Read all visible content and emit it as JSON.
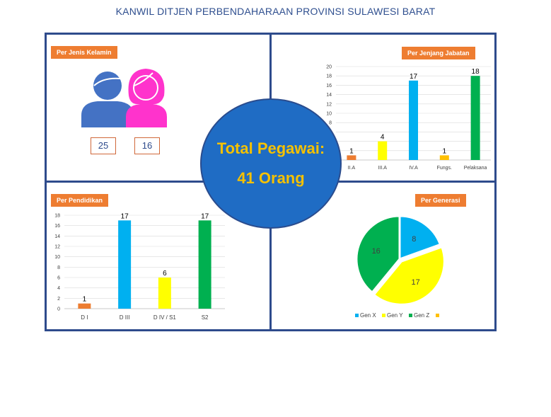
{
  "title": "KANWIL DITJEN PERBENDAHARAAN PROVINSI SULAWESI BARAT",
  "gender_panel": {
    "label": "Per Jenis Kelamin",
    "male_count": "25",
    "female_count": "16",
    "male_color": "#4472c4",
    "female_color": "#ff33cc"
  },
  "total": {
    "line1": "Total Pegawai:",
    "line2": "41 Orang",
    "circle_color": "#1f6cc4",
    "text_color": "#f5c100"
  },
  "rank_panel": {
    "label": "Per Jenjang Jabatan"
  },
  "edu_panel": {
    "label": "Per Pendidikan"
  },
  "gen_panel": {
    "label": "Per Generasi"
  },
  "chart_data": [
    {
      "id": "rank",
      "type": "bar",
      "categories": [
        "II.A",
        "III.A",
        "IV.A",
        "Fungs.",
        "Pelaksana"
      ],
      "values": [
        1,
        4,
        17,
        1,
        18
      ],
      "colors": [
        "#ed7d31",
        "#ffff00",
        "#00b0f0",
        "#ffc000",
        "#00b050"
      ],
      "ylim": [
        0,
        20
      ],
      "yticks": [
        "0",
        "2",
        "4",
        "6",
        "8",
        "10",
        "12",
        "14",
        "16",
        "18",
        "20"
      ],
      "grid": true,
      "legend": "none"
    },
    {
      "id": "edu",
      "type": "bar",
      "categories": [
        "D I",
        "D III",
        "D IV / S1",
        "S2"
      ],
      "values": [
        1,
        17,
        6,
        17
      ],
      "colors": [
        "#ed7d31",
        "#00b0f0",
        "#ffff00",
        "#00b050"
      ],
      "ylim": [
        0,
        18
      ],
      "yticks": [
        "0",
        "2",
        "4",
        "6",
        "8",
        "10",
        "12",
        "14",
        "16",
        "18"
      ],
      "grid": true,
      "legend": "none"
    },
    {
      "id": "gen",
      "type": "pie",
      "categories": [
        "Gen X",
        "Gen Y",
        "Gen Z",
        ""
      ],
      "values": [
        8,
        17,
        16,
        0
      ],
      "colors": [
        "#00b0f0",
        "#ffff00",
        "#00b050",
        "#ffc000"
      ],
      "legend": "bottom"
    }
  ]
}
